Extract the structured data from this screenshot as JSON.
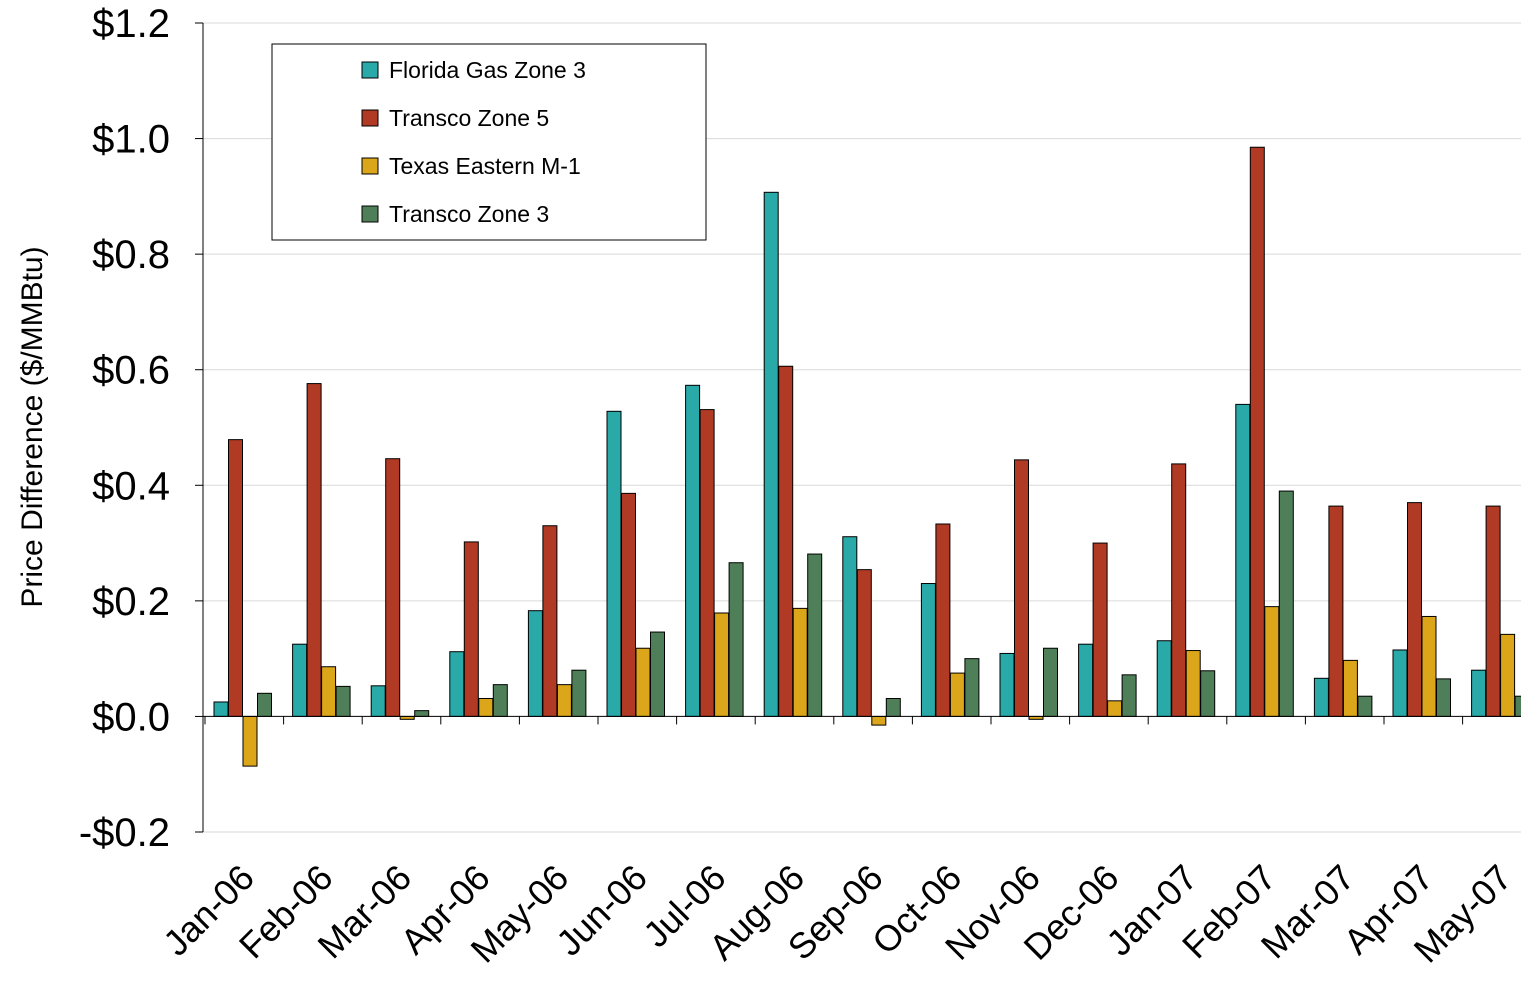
{
  "chart_data": {
    "type": "bar",
    "ylabel": "Price Difference ($/MMBtu)",
    "ylim": [
      -0.2,
      1.2
    ],
    "yticks": [
      -0.2,
      0.0,
      0.2,
      0.4,
      0.6,
      0.8,
      1.0,
      1.2
    ],
    "ytick_labels": [
      "-$0.2",
      "$0.0",
      "$0.2",
      "$0.4",
      "$0.6",
      "$0.8",
      "$1.0",
      "$1.2"
    ],
    "grid": "horizontal",
    "legend_position": "top-left",
    "categories": [
      "Jan-06",
      "Feb-06",
      "Mar-06",
      "Apr-06",
      "May-06",
      "Jun-06",
      "Jul-06",
      "Aug-06",
      "Sep-06",
      "Oct-06",
      "Nov-06",
      "Dec-06",
      "Jan-07",
      "Feb-07",
      "Mar-07",
      "Apr-07",
      "May-07"
    ],
    "series": [
      {
        "name": "Florida Gas Zone 3",
        "color": "#2aa9a9",
        "values": [
          0.025,
          0.125,
          0.053,
          0.112,
          0.183,
          0.528,
          0.573,
          0.907,
          0.311,
          0.23,
          0.109,
          0.125,
          0.131,
          0.54,
          0.066,
          0.115,
          0.08
        ]
      },
      {
        "name": "Transco Zone 5",
        "color": "#b03a24",
        "values": [
          0.479,
          0.576,
          0.446,
          0.302,
          0.33,
          0.386,
          0.531,
          0.606,
          0.254,
          0.333,
          0.444,
          0.3,
          0.437,
          0.985,
          0.364,
          0.37,
          0.364
        ]
      },
      {
        "name": "Texas Eastern M-1",
        "color": "#dca61a",
        "values": [
          -0.086,
          0.086,
          -0.005,
          0.031,
          0.055,
          0.118,
          0.179,
          0.187,
          -0.015,
          0.075,
          -0.005,
          0.027,
          0.114,
          0.19,
          0.097,
          0.173,
          0.142
        ]
      },
      {
        "name": "Transco Zone 3",
        "color": "#4f7f58",
        "values": [
          0.04,
          0.052,
          0.01,
          0.055,
          0.08,
          0.146,
          0.266,
          0.281,
          0.031,
          0.1,
          0.118,
          0.072,
          0.079,
          0.39,
          0.035,
          0.065,
          0.035
        ]
      }
    ]
  }
}
